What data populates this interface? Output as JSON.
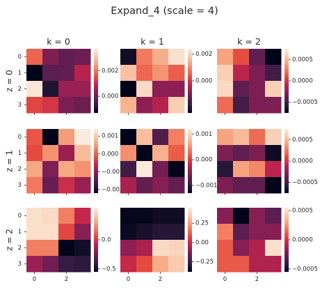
{
  "title": "Expand_4 (scale = 4)",
  "colormap": "rocket",
  "colormap_stops": [
    "#03051a",
    "#2b1a3e",
    "#5b1e51",
    "#8c1f54",
    "#c2244c",
    "#e44a3f",
    "#f2795d",
    "#f6a883",
    "#f9cdb1",
    "#faebdd"
  ],
  "row_labels": [
    "z = 0",
    "z = 1",
    "z = 2"
  ],
  "col_titles": [
    "k = 0",
    "k = 1",
    "k = 2"
  ],
  "x_ticks": [
    "0",
    "2"
  ],
  "y_ticks": [
    "0",
    "1",
    "2",
    "3"
  ],
  "chart_data": {
    "type": "heatmap",
    "panels": [
      {
        "z": 0,
        "k": 0,
        "vmin": -0.0013,
        "vmax": 0.0037,
        "colorbar_ticks": [
          {
            "v": 0.002,
            "label": "0.002"
          },
          {
            "v": 0.0,
            "label": "0.000"
          }
        ],
        "values": [
          [
            0.0018,
            0.0002,
            -0.0001,
            0.0
          ],
          [
            -0.0013,
            -0.0002,
            -0.0001,
            0.0008
          ],
          [
            0.0036,
            -0.0009,
            0.0005,
            0.0005
          ],
          [
            0.0014,
            0.0012,
            0.0002,
            0.0
          ]
        ]
      },
      {
        "z": 0,
        "k": 1,
        "vmin": -0.0024,
        "vmax": 0.0024,
        "colorbar_ticks": [
          {
            "v": 0.002,
            "label": "0.002"
          },
          {
            "v": 0.0,
            "label": "0.000"
          }
        ],
        "values": [
          [
            -0.0022,
            0.0008,
            0.0014,
            0.0022
          ],
          [
            0.0017,
            0.0006,
            0.0011,
            0.0005
          ],
          [
            -0.0024,
            0.0021,
            -0.0008,
            -0.0008
          ],
          [
            0.0015,
            -0.0008,
            -0.0004,
            0.0019
          ]
        ]
      },
      {
        "z": 0,
        "k": 2,
        "vmin": -0.00075,
        "vmax": 0.00075,
        "colorbar_ticks": [
          {
            "v": 0.0005,
            "label": "0.0005"
          },
          {
            "v": 0.0,
            "label": "0.0000"
          },
          {
            "v": -0.0005,
            "label": "−0.0005"
          }
        ],
        "values": [
          [
            0.0004,
            0.0001,
            -0.0004,
            -0.00075
          ],
          [
            0.0006,
            -0.0001,
            -0.0003,
            -0.0005
          ],
          [
            0.00065,
            -0.0004,
            -0.0003,
            0.0006
          ],
          [
            0.0002,
            -0.0005,
            -0.0003,
            -0.0003
          ]
        ]
      },
      {
        "z": 1,
        "k": 0,
        "vmin": -0.0022,
        "vmax": 0.0014,
        "colorbar_ticks": [
          {
            "v": 0.001,
            "label": "0.001"
          },
          {
            "v": 0.0,
            "label": "0.000"
          },
          {
            "v": -0.001,
            "label": "−0.001"
          },
          {
            "v": -0.002,
            "label": "−0.002"
          }
        ],
        "values": [
          [
            -0.0001,
            -0.0022,
            0.0005,
            0.0014
          ],
          [
            -0.0002,
            0.0004,
            -0.0009,
            0.0008
          ],
          [
            0.0006,
            -0.0011,
            0.0006,
            0.0004
          ],
          [
            0.0002,
            -0.0013,
            -0.0005,
            -0.0009
          ]
        ]
      },
      {
        "z": 1,
        "k": 1,
        "vmin": -0.0013,
        "vmax": 0.0012,
        "colorbar_ticks": [
          {
            "v": 0.001,
            "label": "0.001"
          },
          {
            "v": 0.0,
            "label": "0.000"
          },
          {
            "v": -0.001,
            "label": "−0.001"
          }
        ],
        "values": [
          [
            -0.0013,
            0.0008,
            -0.0008,
            0.0004
          ],
          [
            0.0005,
            -0.0013,
            0.0007,
            0.0002
          ],
          [
            -0.0009,
            0.0012,
            -0.0006,
            -0.0013
          ],
          [
            -0.0003,
            -0.0007,
            -0.0005,
            -0.0007
          ]
        ]
      },
      {
        "z": 1,
        "k": 2,
        "vmin": -0.00075,
        "vmax": 0.00075,
        "colorbar_ticks": [
          {
            "v": 0.0005,
            "label": "0.0005"
          },
          {
            "v": 0.0,
            "label": "0.0000"
          },
          {
            "v": -0.0005,
            "label": "−0.0005"
          }
        ],
        "values": [
          [
            0.0004,
            0.0005,
            0.0002,
            0.0006
          ],
          [
            -0.0003,
            -0.0004,
            -0.0003,
            -0.0007
          ],
          [
            -0.0006,
            0.0004,
            0.0003,
            -0.0001
          ],
          [
            -0.0003,
            -0.0004,
            -0.0004,
            -0.00075
          ]
        ]
      },
      {
        "z": 2,
        "k": 0,
        "vmin": -0.55,
        "vmax": 0.55,
        "colorbar_ticks": [
          {
            "v": 0.0,
            "label": "0.0"
          },
          {
            "v": -0.5,
            "label": "−0.5"
          }
        ],
        "values": [
          [
            0.5,
            0.48,
            0.2,
            -0.05
          ],
          [
            0.5,
            0.5,
            0.05,
            -0.2
          ],
          [
            0.2,
            0.2,
            -0.55,
            -0.5
          ],
          [
            -0.15,
            -0.25,
            -0.4,
            -0.42
          ]
        ]
      },
      {
        "z": 2,
        "k": 1,
        "vmin": -0.38,
        "vmax": 0.45,
        "colorbar_ticks": [
          {
            "v": 0.25,
            "label": "0.25"
          },
          {
            "v": 0.0,
            "label": "0.00"
          },
          {
            "v": -0.25,
            "label": "−0.25"
          }
        ],
        "values": [
          [
            -0.37,
            -0.37,
            -0.35,
            -0.35
          ],
          [
            -0.36,
            -0.33,
            -0.3,
            -0.3
          ],
          [
            -0.1,
            -0.05,
            0.4,
            0.38
          ],
          [
            0.0,
            0.08,
            0.28,
            0.35
          ]
        ]
      },
      {
        "z": 2,
        "k": 2,
        "vmin": -0.00055,
        "vmax": 0.00055,
        "colorbar_ticks": [
          {
            "v": 0.0005,
            "label": "0.0005"
          },
          {
            "v": 0.0,
            "label": "0.0000"
          },
          {
            "v": -0.0005,
            "label": "−0.0005"
          }
        ],
        "values": [
          [
            -0.0002,
            -0.00055,
            -0.0002,
            -0.0003
          ],
          [
            0.0002,
            -0.0003,
            -0.0002,
            -0.0002
          ],
          [
            0.0001,
            -0.0002,
            -0.0001,
            0.0005
          ],
          [
            0.0001,
            0.0001,
            -0.0001,
            -0.0001
          ]
        ]
      }
    ]
  }
}
